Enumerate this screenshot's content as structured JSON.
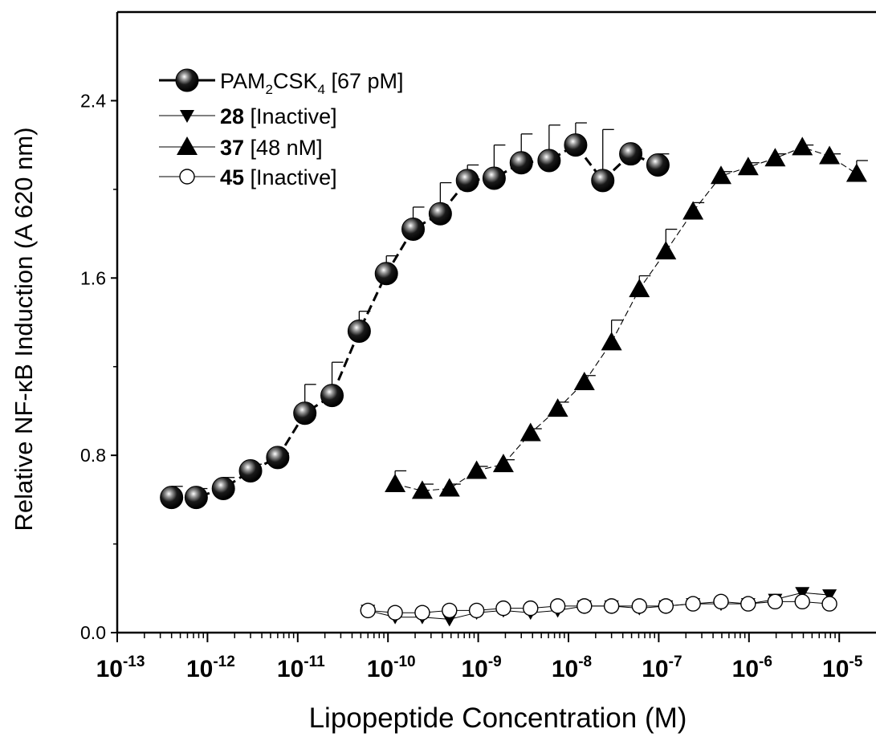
{
  "chart_data": {
    "type": "scatter",
    "xlabel": "Lipopeptide Concentration (M)",
    "ylabel": "Relative NF-κB Induction (A 620 nm)",
    "x_scale": "log",
    "xlim": [
      3e-14,
      1.2e-05
    ],
    "ylim": [
      0.0,
      2.8
    ],
    "y_ticks": [
      "0.0",
      "0.8",
      "1.6",
      "2.4"
    ],
    "x_ticks": [
      {
        "base": "10",
        "exp": "-13"
      },
      {
        "base": "10",
        "exp": "-12"
      },
      {
        "base": "10",
        "exp": "-11"
      },
      {
        "base": "10",
        "exp": "-10"
      },
      {
        "base": "10",
        "exp": "-9"
      },
      {
        "base": "10",
        "exp": "-8"
      },
      {
        "base": "10",
        "exp": "-7"
      },
      {
        "base": "10",
        "exp": "-6"
      },
      {
        "base": "10",
        "exp": "-5"
      }
    ],
    "grid": false,
    "legend_position": "top-left",
    "series": [
      {
        "id": "pam",
        "legend_main": "PAM",
        "legend_sub1": "2",
        "legend_mid": "CSK",
        "legend_sub2": "4",
        "legend_rest": " [67 pM]",
        "marker": "sphere",
        "line": "thick-dashed",
        "x": [
          4e-13,
          7.5e-13,
          1.5e-12,
          3e-12,
          6e-12,
          1.2e-11,
          2.4e-11,
          4.8e-11,
          9.6e-11,
          1.9e-10,
          3.8e-10,
          7.6e-10,
          1.5e-09,
          3e-09,
          6.1e-09,
          1.2e-08,
          2.4e-08,
          4.9e-08,
          9.8e-08
        ],
        "y": [
          0.61,
          0.61,
          0.65,
          0.73,
          0.79,
          0.99,
          1.07,
          1.36,
          1.62,
          1.82,
          1.89,
          2.04,
          2.05,
          2.12,
          2.13,
          2.2,
          2.04,
          2.16,
          2.11
        ],
        "err": [
          0.05,
          0.04,
          0.05,
          0.03,
          0.02,
          0.13,
          0.15,
          0.09,
          0.08,
          0.1,
          0.14,
          0.07,
          0.15,
          0.13,
          0.16,
          0.1,
          0.23,
          0.02,
          0.05
        ]
      },
      {
        "id": "c28",
        "legend_bold": "28",
        "legend_rest": " [Inactive]",
        "marker": "triangle-down",
        "line": "thin",
        "x": [
          6e-11,
          1.2e-10,
          2.4e-10,
          4.8e-10,
          9.6e-10,
          1.9e-09,
          3.8e-09,
          7.6e-09,
          1.5e-08,
          3e-08,
          6.1e-08,
          1.2e-07,
          2.4e-07,
          4.9e-07,
          9.8e-07,
          1.95e-06,
          3.9e-06,
          7.8e-06
        ],
        "y": [
          0.1,
          0.07,
          0.07,
          0.06,
          0.09,
          0.1,
          0.09,
          0.1,
          0.12,
          0.12,
          0.11,
          0.12,
          0.13,
          0.13,
          0.13,
          0.15,
          0.18,
          0.17
        ],
        "err": []
      },
      {
        "id": "c37",
        "legend_bold": "37",
        "legend_rest": "  [48 nM]",
        "marker": "triangle-up",
        "line": "thin-dashed",
        "x": [
          1.2e-10,
          2.4e-10,
          4.8e-10,
          9.6e-10,
          1.9e-09,
          3.8e-09,
          7.6e-09,
          1.5e-08,
          3e-08,
          6.1e-08,
          1.2e-07,
          2.4e-07,
          4.9e-07,
          9.8e-07,
          1.95e-06,
          3.9e-06,
          7.8e-06,
          1.56e-05
        ],
        "y": [
          0.67,
          0.64,
          0.65,
          0.73,
          0.76,
          0.9,
          1.01,
          1.13,
          1.31,
          1.55,
          1.72,
          1.9,
          2.06,
          2.1,
          2.14,
          2.19,
          2.15,
          2.07
        ],
        "err": [
          0.06,
          0.03,
          0.02,
          0.02,
          0.02,
          0.02,
          0.03,
          0.03,
          0.1,
          0.06,
          0.1,
          0.04,
          0.02,
          0.02,
          0.02,
          0.01,
          0.01,
          0.06
        ]
      },
      {
        "id": "c45",
        "legend_bold": "45",
        "legend_rest": "  [Inactive]",
        "marker": "circle-open",
        "line": "thin",
        "x": [
          6e-11,
          1.2e-10,
          2.4e-10,
          4.8e-10,
          9.6e-10,
          1.9e-09,
          3.8e-09,
          7.6e-09,
          1.5e-08,
          3e-08,
          6.1e-08,
          1.2e-07,
          2.4e-07,
          4.9e-07,
          9.8e-07,
          1.95e-06,
          3.9e-06,
          7.8e-06
        ],
        "y": [
          0.1,
          0.09,
          0.09,
          0.1,
          0.1,
          0.11,
          0.11,
          0.12,
          0.12,
          0.12,
          0.12,
          0.12,
          0.13,
          0.14,
          0.13,
          0.14,
          0.14,
          0.13
        ],
        "err": []
      }
    ]
  }
}
